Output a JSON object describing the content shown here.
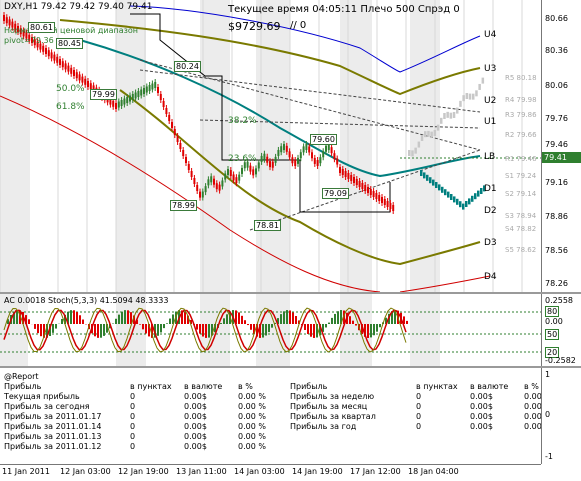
{
  "chart": {
    "symbol_line": "DXY,H1  79.42 79.42 79.40 79.41",
    "info_line": "Текущее время 04:05:11 Плечо 500 Спрэд 0",
    "balance": "$9729.69",
    "slash_zero": "// 0",
    "norm_label": "Нормальный ценовой диапазон",
    "pivot_label": "pivot=79.36",
    "current_price": "79.41",
    "price_scale": [
      "80.66",
      "80.36",
      "80.06",
      "79.76",
      "79.46",
      "79.16",
      "78.86",
      "78.56",
      "78.26"
    ],
    "price_labels": [
      {
        "text": "80.61"
      },
      {
        "text": "80.45"
      },
      {
        "text": "80.24"
      },
      {
        "text": "79.99"
      },
      {
        "text": "79.60"
      },
      {
        "text": "79.09"
      },
      {
        "text": "78.99"
      },
      {
        "text": "78.81"
      }
    ],
    "fib_levels": [
      "50.0%",
      "61.8%",
      "38.2%",
      "23.6%"
    ],
    "pivot_levels": [
      "U4",
      "U3",
      "U2",
      "U1",
      "LB",
      "D1",
      "D2",
      "D3",
      "D4"
    ],
    "rs_levels": [
      "R5 80.18",
      "R4 79.98",
      "R3 79.86",
      "R2 79.66",
      "R1 79.46",
      "S1 79.24",
      "S2 79.14",
      "S3 78.94",
      "S4 78.82",
      "S5 78.62"
    ],
    "colors": {
      "candle_up": "#2f7f2f",
      "candle_down": "#e00000",
      "pivot_olive": "#7a7a00",
      "blue_line": "#0000d0",
      "teal_line": "#007f7f"
    }
  },
  "indicator": {
    "header": "AC 0.0018  Stoch(5,3,3) 41.5094 48.3333",
    "scale": [
      "0.2558",
      "80",
      "0.00",
      "50",
      "20",
      "-0.2582"
    ]
  },
  "report": {
    "title": "@Report",
    "col_headers": [
      "в пунктах",
      "в валюте",
      "в %"
    ],
    "left_rows": [
      {
        "label": "Прибыль",
        "pts": "в пунктах",
        "cur": "в валюте",
        "pct": "в %"
      },
      {
        "label": "Текущая прибыль",
        "pts": "0",
        "cur": "0.00$",
        "pct": "0.00 %"
      },
      {
        "label": "Прибыль за сегодня",
        "pts": "0",
        "cur": "0.00$",
        "pct": "0.00 %"
      },
      {
        "label": "Прибыль за 2011.01.17",
        "pts": "0",
        "cur": "0.00$",
        "pct": "0.00 %"
      },
      {
        "label": "Прибыль за 2011.01.14",
        "pts": "0",
        "cur": "0.00$",
        "pct": "0.00 %"
      },
      {
        "label": "Прибыль за 2011.01.13",
        "pts": "0",
        "cur": "0.00$",
        "pct": "0.00 %"
      },
      {
        "label": "Прибыль за 2011.01.12",
        "pts": "0",
        "cur": "0.00$",
        "pct": "0.00 %"
      }
    ],
    "right_rows": [
      {
        "label": "Прибыль",
        "pts": "в пунктах",
        "cur": "в валюте",
        "pct": "в %"
      },
      {
        "label": "Прибыль за неделю",
        "pts": "0",
        "cur": "0.00$",
        "pct": "0.00 %"
      },
      {
        "label": "Прибыль за месяц",
        "pts": "0",
        "cur": "0.00$",
        "pct": "0.00 %"
      },
      {
        "label": "Прибыль за квартал",
        "pts": "0",
        "cur": "0.00$",
        "pct": "0.00 %"
      },
      {
        "label": "Прибыль за год",
        "pts": "0",
        "cur": "0.00$",
        "pct": "0.00 %"
      }
    ],
    "scale": [
      "1",
      "0",
      "-1"
    ]
  },
  "xaxis": [
    "11 Jan 2011",
    "12 Jan 03:00",
    "12 Jan 19:00",
    "13 Jan 11:00",
    "14 Jan 03:00",
    "14 Jan 19:00",
    "17 Jan 12:00",
    "18 Jan 04:00"
  ]
}
